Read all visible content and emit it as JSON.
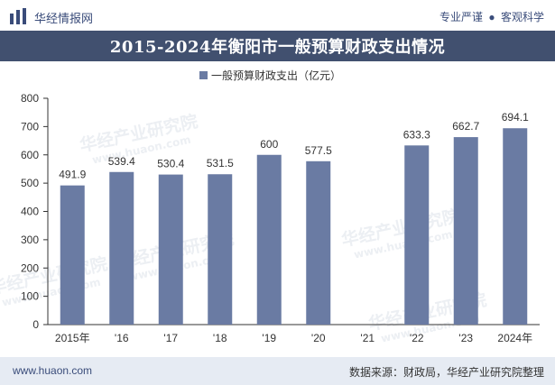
{
  "header": {
    "site_name": "华经情报网",
    "slogan_left": "专业严谨",
    "slogan_right": "客观科学"
  },
  "title": "2015-2024年衡阳市一般预算财政支出情况",
  "footer": {
    "url": "www.huaon.com",
    "source": "数据来源：财政局，华经产业研究院整理"
  },
  "watermark": {
    "cn": "华经产业研究院",
    "en": "www.huaon.com"
  },
  "colors": {
    "bar": "#6a7ba3",
    "title_bg": "#41506f",
    "footer_bg": "#e6ebf3",
    "brand": "#3a4c7a"
  },
  "chart_data": {
    "type": "bar",
    "categories": [
      "2015年",
      "'16",
      "'17",
      "'18",
      "'19",
      "'20",
      "'21",
      "'22",
      "'23",
      "2024年"
    ],
    "series": [
      {
        "name": "一般预算财政支出（亿元）",
        "values": [
          491.9,
          539.4,
          530.4,
          531.5,
          600,
          577.5,
          null,
          633.3,
          662.7,
          694.1
        ]
      }
    ],
    "data_labels": [
      "491.9",
      "539.4",
      "530.4",
      "531.5",
      "600",
      "577.5",
      "",
      "633.3",
      "662.7",
      "694.1"
    ],
    "ylim": [
      0,
      800
    ],
    "yticks": [
      0,
      100,
      200,
      300,
      400,
      500,
      600,
      700,
      800
    ],
    "legend_position": "top-center",
    "grid": false
  }
}
